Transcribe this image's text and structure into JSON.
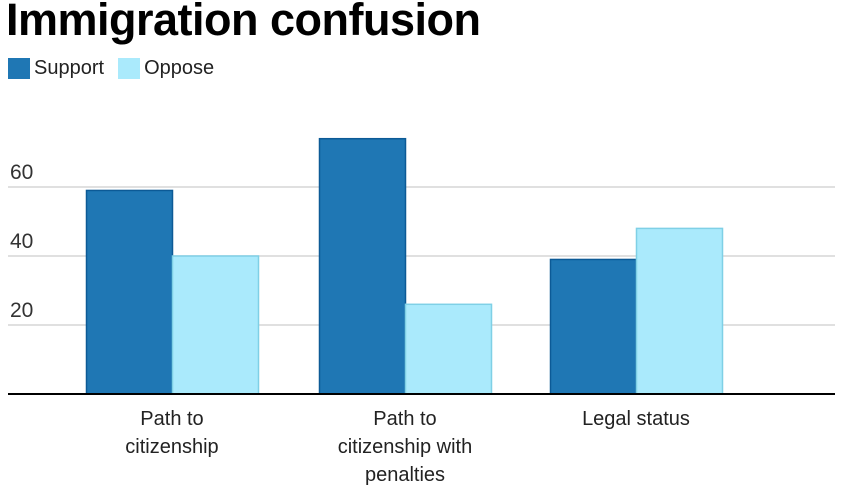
{
  "chart_data": {
    "type": "bar",
    "title": "Immigration confusion",
    "categories": [
      [
        "Path to",
        "citizenship"
      ],
      [
        "Path to",
        "citizenship with",
        "penalties"
      ],
      [
        "Legal status"
      ]
    ],
    "series": [
      {
        "name": "Support",
        "values": [
          59,
          74,
          39
        ],
        "color": "#1f77b4",
        "stroke": "#0c5a96"
      },
      {
        "name": "Oppose",
        "values": [
          40,
          26,
          48
        ],
        "color": "#aaeafc",
        "stroke": "#7fd0e6"
      }
    ],
    "yticks": [
      20,
      40,
      60
    ],
    "ylim": [
      0,
      80
    ],
    "grid": true,
    "legend": "top-left",
    "xlabel": "",
    "ylabel": ""
  }
}
